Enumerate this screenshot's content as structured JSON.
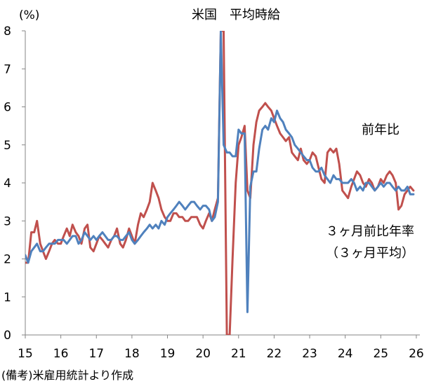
{
  "chart_data": {
    "type": "line",
    "title": "米国　平均時給",
    "ylabel": "(%)",
    "source_note": "(備考)米雇用統計より作成",
    "ylim": [
      0,
      8
    ],
    "y_ticks": [
      "0",
      "1",
      "2",
      "3",
      "4",
      "5",
      "6",
      "7",
      "8"
    ],
    "xlim": [
      15,
      26.1
    ],
    "x_ticks": [
      "15",
      "16",
      "17",
      "18",
      "19",
      "20",
      "21",
      "22",
      "23",
      "24",
      "25",
      "26"
    ],
    "grid": false,
    "colors": {
      "yoy": "#4f81bd",
      "avg3": "#c0504d"
    },
    "series": [
      {
        "name": "前年比",
        "color": "#4f81bd",
        "x": [
          15.0,
          15.08,
          15.17,
          15.25,
          15.33,
          15.42,
          15.5,
          15.58,
          15.67,
          15.75,
          15.83,
          15.92,
          16.0,
          16.08,
          16.17,
          16.25,
          16.33,
          16.42,
          16.5,
          16.58,
          16.67,
          16.75,
          16.83,
          16.92,
          17.0,
          17.08,
          17.17,
          17.25,
          17.33,
          17.42,
          17.5,
          17.58,
          17.67,
          17.75,
          17.83,
          17.92,
          18.0,
          18.08,
          18.17,
          18.25,
          18.33,
          18.42,
          18.5,
          18.58,
          18.67,
          18.75,
          18.83,
          18.92,
          19.0,
          19.08,
          19.17,
          19.25,
          19.33,
          19.42,
          19.5,
          19.58,
          19.67,
          19.75,
          19.83,
          19.92,
          20.0,
          20.08,
          20.17,
          20.25,
          20.33,
          20.42,
          20.5,
          20.58,
          20.67,
          20.75,
          20.83,
          20.92,
          21.0,
          21.08,
          21.17,
          21.25,
          21.33,
          21.42,
          21.5,
          21.58,
          21.67,
          21.75,
          21.83,
          21.92,
          22.0,
          22.08,
          22.17,
          22.25,
          22.33,
          22.42,
          22.5,
          22.58,
          22.67,
          22.75,
          22.83,
          22.92,
          23.0,
          23.08,
          23.17,
          23.25,
          23.33,
          23.42,
          23.5,
          23.58,
          23.67,
          23.75,
          23.83,
          23.92,
          24.0,
          24.08,
          24.17,
          24.25,
          24.33,
          24.42,
          24.5,
          24.58,
          24.67,
          24.75,
          24.83,
          24.92,
          25.0,
          25.08,
          25.17,
          25.25,
          25.33,
          25.42,
          25.5,
          25.58,
          25.67,
          25.75,
          25.83,
          25.92
        ],
        "values": [
          2.1,
          1.9,
          2.2,
          2.3,
          2.4,
          2.2,
          2.2,
          2.3,
          2.4,
          2.4,
          2.4,
          2.5,
          2.5,
          2.5,
          2.4,
          2.5,
          2.6,
          2.6,
          2.4,
          2.5,
          2.7,
          2.6,
          2.5,
          2.6,
          2.5,
          2.6,
          2.7,
          2.6,
          2.5,
          2.5,
          2.6,
          2.6,
          2.5,
          2.5,
          2.6,
          2.7,
          2.5,
          2.4,
          2.5,
          2.6,
          2.7,
          2.8,
          2.9,
          2.8,
          2.9,
          2.8,
          3.0,
          2.9,
          3.1,
          3.2,
          3.3,
          3.4,
          3.5,
          3.4,
          3.3,
          3.4,
          3.5,
          3.5,
          3.4,
          3.3,
          3.4,
          3.4,
          3.3,
          3.0,
          3.1,
          3.5,
          8.0,
          5.0,
          4.8,
          4.8,
          4.7,
          4.7,
          5.4,
          5.3,
          5.3,
          0.6,
          3.9,
          4.3,
          4.3,
          4.9,
          5.4,
          5.5,
          5.4,
          5.7,
          5.6,
          5.9,
          5.7,
          5.6,
          5.4,
          5.3,
          5.2,
          5.0,
          4.9,
          4.8,
          4.7,
          4.6,
          4.6,
          4.4,
          4.3,
          4.3,
          4.4,
          4.2,
          4.1,
          4.0,
          4.2,
          4.1,
          4.1,
          4.0,
          4.0,
          4.0,
          4.1,
          4.0,
          3.8,
          3.9,
          3.8,
          4.0,
          4.0,
          3.9,
          3.8,
          3.9,
          4.0,
          3.9,
          4.0,
          4.0,
          3.9,
          3.8,
          3.9,
          3.8,
          3.8,
          3.9,
          3.7,
          3.7
        ]
      },
      {
        "name": "３ヶ月前比年率（３ヶ月平均）",
        "legend_lines": [
          "３ヶ月前比年率",
          "（３ヶ月平均）"
        ],
        "color": "#c0504d",
        "x": [
          15.0,
          15.08,
          15.17,
          15.25,
          15.33,
          15.42,
          15.5,
          15.58,
          15.67,
          15.75,
          15.83,
          15.92,
          16.0,
          16.08,
          16.17,
          16.25,
          16.33,
          16.42,
          16.5,
          16.58,
          16.67,
          16.75,
          16.83,
          16.92,
          17.0,
          17.08,
          17.17,
          17.25,
          17.33,
          17.42,
          17.5,
          17.58,
          17.67,
          17.75,
          17.83,
          17.92,
          18.0,
          18.08,
          18.17,
          18.25,
          18.33,
          18.42,
          18.5,
          18.58,
          18.67,
          18.75,
          18.83,
          18.92,
          19.0,
          19.08,
          19.17,
          19.25,
          19.33,
          19.42,
          19.5,
          19.58,
          19.67,
          19.75,
          19.83,
          19.92,
          20.0,
          20.08,
          20.17,
          20.25,
          20.33,
          20.42,
          20.5,
          20.58,
          20.67,
          20.75,
          20.83,
          20.92,
          21.0,
          21.08,
          21.17,
          21.25,
          21.33,
          21.42,
          21.5,
          21.58,
          21.67,
          21.75,
          21.83,
          21.92,
          22.0,
          22.08,
          22.17,
          22.25,
          22.33,
          22.42,
          22.5,
          22.58,
          22.67,
          22.75,
          22.83,
          22.92,
          23.0,
          23.08,
          23.17,
          23.25,
          23.33,
          23.42,
          23.5,
          23.58,
          23.67,
          23.75,
          23.83,
          23.92,
          24.0,
          24.08,
          24.17,
          24.25,
          24.33,
          24.42,
          24.5,
          24.58,
          24.67,
          24.75,
          24.83,
          24.92,
          25.0,
          25.08,
          25.17,
          25.25,
          25.33,
          25.42,
          25.5,
          25.58,
          25.67,
          25.75,
          25.83,
          25.92
        ],
        "values": [
          1.9,
          1.9,
          2.7,
          2.7,
          3.0,
          2.4,
          2.2,
          2.0,
          2.2,
          2.4,
          2.5,
          2.4,
          2.4,
          2.6,
          2.8,
          2.6,
          2.9,
          2.7,
          2.6,
          2.4,
          2.8,
          2.9,
          2.3,
          2.2,
          2.4,
          2.6,
          2.5,
          2.4,
          2.3,
          2.5,
          2.6,
          2.8,
          2.4,
          2.3,
          2.5,
          2.8,
          2.6,
          2.4,
          2.9,
          3.2,
          3.1,
          3.3,
          3.5,
          4.0,
          3.8,
          3.6,
          3.3,
          3.1,
          3.0,
          3.0,
          3.2,
          3.2,
          3.1,
          3.1,
          3.0,
          3.0,
          3.1,
          3.1,
          3.1,
          2.9,
          2.8,
          3.0,
          3.2,
          3.0,
          3.3,
          3.6,
          8.0,
          8.0,
          0.0,
          0.0,
          2.0,
          4.0,
          5.0,
          5.2,
          5.5,
          3.8,
          3.6,
          5.0,
          5.6,
          5.9,
          6.0,
          6.1,
          6.0,
          5.9,
          5.7,
          5.5,
          5.3,
          5.2,
          5.1,
          5.2,
          4.8,
          4.7,
          4.6,
          4.9,
          4.6,
          4.5,
          4.6,
          4.8,
          4.7,
          4.4,
          4.1,
          4.0,
          4.8,
          4.9,
          4.8,
          4.9,
          4.5,
          3.8,
          3.7,
          3.6,
          3.9,
          4.1,
          4.3,
          4.2,
          4.0,
          3.9,
          4.1,
          4.0,
          3.8,
          3.9,
          4.1,
          4.0,
          4.2,
          4.3,
          4.2,
          4.0,
          3.3,
          3.4,
          3.7,
          3.8,
          3.9,
          3.8
        ]
      }
    ]
  }
}
